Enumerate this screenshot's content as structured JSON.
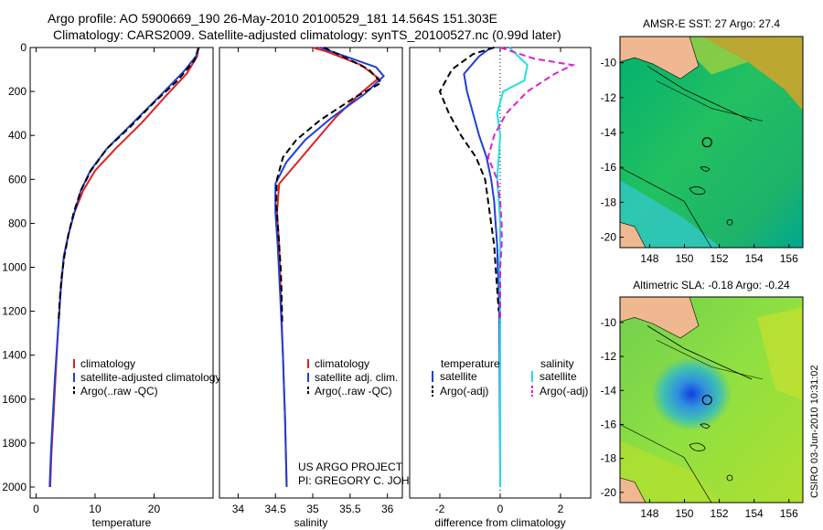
{
  "title_line1": "Argo profile: AO 5900669_190 26-May-2010 20100529_181 14.564S 151.303E",
  "title_line2": "Climatology: CARS2009. Satellite-adjusted climatology: synTS_20100527.nc (0.99d later)",
  "side_label": "CSIRO 03-Jun-2010 10:31:02",
  "colors": {
    "red": "#e02020",
    "blue": "#1f3fd6",
    "black": "#000000",
    "cyan": "#22e0e0",
    "magenta": "#e020d0"
  },
  "chart_data": [
    {
      "type": "line",
      "name": "temperature",
      "xlabel": "temperature",
      "xlim": [
        -1,
        30
      ],
      "ylim": [
        0,
        2050
      ],
      "y_reversed": true,
      "xticks": [
        0,
        10,
        20
      ],
      "xtick_labels": [
        "0",
        "10",
        "20"
      ],
      "yticks": [
        0,
        200,
        400,
        600,
        800,
        1000,
        1200,
        1400,
        1600,
        1800,
        2000
      ],
      "ytick_labels": [
        "0",
        "200",
        "400",
        "600",
        "800",
        "1000",
        "1200",
        "1400",
        "1600",
        "1800",
        "2000"
      ],
      "legend": [
        "climatology",
        "satellite-adjusted climatology",
        "Argo(..raw -QC)"
      ],
      "series": [
        {
          "name": "climatology",
          "color": "#e02020",
          "dash": "",
          "points": [
            [
              27.5,
              0
            ],
            [
              27.3,
              40
            ],
            [
              25.5,
              120
            ],
            [
              22,
              220
            ],
            [
              18,
              340
            ],
            [
              13.5,
              460
            ],
            [
              10,
              560
            ],
            [
              8,
              650
            ],
            [
              6.5,
              750
            ],
            [
              5.5,
              850
            ],
            [
              4.7,
              950
            ],
            [
              4.2,
              1100
            ],
            [
              3.7,
              1300
            ],
            [
              3.3,
              1500
            ],
            [
              2.9,
              1700
            ],
            [
              2.6,
              1850
            ],
            [
              2.4,
              2000
            ]
          ]
        },
        {
          "name": "satellite-adjusted climatology",
          "color": "#1f3fd6",
          "dash": "",
          "points": [
            [
              27.5,
              0
            ],
            [
              27.1,
              40
            ],
            [
              25,
              110
            ],
            [
              21,
              220
            ],
            [
              16.5,
              340
            ],
            [
              12,
              460
            ],
            [
              9.2,
              560
            ],
            [
              7.6,
              650
            ],
            [
              6.5,
              750
            ],
            [
              5.5,
              850
            ],
            [
              4.7,
              950
            ],
            [
              4.2,
              1100
            ],
            [
              3.7,
              1300
            ],
            [
              3.2,
              1500
            ],
            [
              2.8,
              1700
            ],
            [
              2.5,
              1850
            ],
            [
              2.3,
              2000
            ]
          ]
        },
        {
          "name": "Argo(..raw -QC)",
          "color": "#000000",
          "dash": "7,4",
          "points": [
            [
              27.6,
              0
            ],
            [
              26.8,
              60
            ],
            [
              24,
              150
            ],
            [
              20,
              250
            ],
            [
              16,
              360
            ],
            [
              12,
              460
            ],
            [
              9.3,
              560
            ],
            [
              7.6,
              650
            ],
            [
              6.4,
              750
            ],
            [
              5.5,
              850
            ],
            [
              4.8,
              950
            ],
            [
              4.3,
              1050
            ],
            [
              4.0,
              1150
            ],
            [
              3.8,
              1250
            ]
          ]
        }
      ]
    },
    {
      "type": "line",
      "name": "salinity",
      "xlabel": "salinity",
      "xlim": [
        33.75,
        36.2
      ],
      "ylim": [
        0,
        2050
      ],
      "y_reversed": true,
      "xticks": [
        34,
        34.5,
        35,
        35.5,
        36
      ],
      "xtick_labels": [
        "34",
        "34.5",
        "35",
        "35.5",
        "36"
      ],
      "legend": [
        "climatology",
        "satellite adj. clim.",
        "Argo(..raw -QC)"
      ],
      "annotation": [
        "US ARGO PROJECT",
        "PI: GREGORY C. JOHNSON"
      ],
      "series": [
        {
          "name": "climatology",
          "color": "#e02020",
          "dash": "",
          "points": [
            [
              35.0,
              0
            ],
            [
              35.2,
              20
            ],
            [
              35.65,
              80
            ],
            [
              35.88,
              140
            ],
            [
              35.6,
              220
            ],
            [
              35.3,
              320
            ],
            [
              35.05,
              420
            ],
            [
              34.8,
              520
            ],
            [
              34.55,
              620
            ],
            [
              34.52,
              750
            ],
            [
              34.55,
              900
            ],
            [
              34.57,
              1100
            ],
            [
              34.6,
              1400
            ],
            [
              34.63,
              1700
            ],
            [
              34.65,
              2000
            ]
          ]
        },
        {
          "name": "satellite adj. clim.",
          "color": "#1f3fd6",
          "dash": "",
          "points": [
            [
              35.1,
              0
            ],
            [
              35.35,
              30
            ],
            [
              35.85,
              90
            ],
            [
              35.95,
              130
            ],
            [
              35.7,
              210
            ],
            [
              35.25,
              320
            ],
            [
              34.9,
              420
            ],
            [
              34.65,
              520
            ],
            [
              34.5,
              620
            ],
            [
              34.5,
              750
            ],
            [
              34.53,
              900
            ],
            [
              34.56,
              1100
            ],
            [
              34.6,
              1400
            ],
            [
              34.63,
              1700
            ],
            [
              34.65,
              2000
            ]
          ]
        },
        {
          "name": "Argo(..raw -QC)",
          "color": "#000000",
          "dash": "7,4",
          "points": [
            [
              35.15,
              0
            ],
            [
              35.4,
              40
            ],
            [
              35.75,
              100
            ],
            [
              35.92,
              160
            ],
            [
              35.55,
              230
            ],
            [
              35.1,
              330
            ],
            [
              34.78,
              420
            ],
            [
              34.6,
              500
            ],
            [
              34.52,
              600
            ],
            [
              34.51,
              700
            ],
            [
              34.53,
              800
            ],
            [
              34.55,
              900
            ],
            [
              34.57,
              1000
            ],
            [
              34.58,
              1100
            ],
            [
              34.59,
              1250
            ]
          ]
        }
      ]
    },
    {
      "type": "line",
      "name": "difference",
      "xlabel": "difference from climatology",
      "xlim": [
        -3,
        3
      ],
      "ylim": [
        0,
        2050
      ],
      "y_reversed": true,
      "xticks": [
        -2,
        0,
        2
      ],
      "xtick_labels": [
        "-2",
        "0",
        "2"
      ],
      "legend_temperature": {
        "header": "temperature",
        "entries": [
          "satellite",
          "Argo(-adj)"
        ]
      },
      "legend_salinity": {
        "header": "salinity",
        "entries": [
          "satellite",
          "Argo(-adj)"
        ]
      },
      "series": [
        {
          "name": "temperature satellite",
          "color": "#1f3fd6",
          "dash": "",
          "points": [
            [
              -0.3,
              0
            ],
            [
              -0.7,
              40
            ],
            [
              -1.2,
              120
            ],
            [
              -1.1,
              200
            ],
            [
              -0.9,
              300
            ],
            [
              -0.7,
              400
            ],
            [
              -0.45,
              500
            ],
            [
              -0.3,
              600
            ],
            [
              -0.2,
              700
            ],
            [
              -0.15,
              800
            ],
            [
              -0.1,
              900
            ],
            [
              -0.08,
              1000
            ],
            [
              -0.05,
              1100
            ],
            [
              -0.03,
              1200
            ],
            [
              -0.02,
              1400
            ],
            [
              0,
              2000
            ]
          ]
        },
        {
          "name": "temperature Argo(-adj)",
          "color": "#000000",
          "dash": "7,4",
          "points": [
            [
              -0.2,
              0
            ],
            [
              -0.9,
              30
            ],
            [
              -1.6,
              100
            ],
            [
              -2.0,
              200
            ],
            [
              -1.7,
              300
            ],
            [
              -1.3,
              400
            ],
            [
              -0.8,
              500
            ],
            [
              -0.5,
              600
            ],
            [
              -0.4,
              700
            ],
            [
              -0.3,
              800
            ],
            [
              -0.2,
              900
            ],
            [
              -0.15,
              1000
            ],
            [
              -0.1,
              1100
            ],
            [
              -0.05,
              1200
            ]
          ]
        },
        {
          "name": "salinity satellite",
          "color": "#22e0e0",
          "dash": "",
          "points": [
            [
              0.3,
              0
            ],
            [
              0.9,
              80
            ],
            [
              0.8,
              150
            ],
            [
              0.1,
              200
            ],
            [
              -0.1,
              300
            ],
            [
              0,
              400
            ],
            [
              -0.05,
              500
            ],
            [
              -0.1,
              600
            ],
            [
              -0.05,
              700
            ],
            [
              0,
              800
            ],
            [
              0,
              900
            ],
            [
              -0.02,
              1000
            ],
            [
              0,
              1200
            ],
            [
              0,
              2000
            ]
          ]
        },
        {
          "name": "salinity Argo(-adj)",
          "color": "#e020d0",
          "dash": "7,4",
          "points": [
            [
              0,
              0
            ],
            [
              1.1,
              50
            ],
            [
              2.4,
              80
            ],
            [
              1.8,
              120
            ],
            [
              0.9,
              200
            ],
            [
              0.2,
              300
            ],
            [
              -0.2,
              400
            ],
            [
              -0.4,
              500
            ],
            [
              -0.1,
              600
            ],
            [
              0,
              700
            ],
            [
              0.05,
              800
            ],
            [
              0.05,
              900
            ],
            [
              0,
              1000
            ],
            [
              0,
              1250
            ]
          ]
        }
      ]
    },
    {
      "type": "heatmap",
      "name": "AMSR-E SST",
      "title": "AMSR-E SST: 27 Argo: 27.4",
      "xlim": [
        146.3,
        156.8
      ],
      "ylim": [
        -20.6,
        -8.5
      ],
      "xticks": [
        148,
        150,
        152,
        154,
        156
      ],
      "xtick_labels": [
        "148",
        "150",
        "152",
        "154",
        "156"
      ],
      "yticks": [
        -10,
        -12,
        -14,
        -16,
        -18,
        -20
      ],
      "ytick_labels": [
        "-10",
        "-12",
        "-14",
        "-16",
        "-18",
        "-20"
      ],
      "argo_marker": [
        151.3,
        -14.56
      ]
    },
    {
      "type": "heatmap",
      "name": "Altimetric SLA",
      "title": "Altimetric SLA: -0.18 Argo: -0.24",
      "xlim": [
        146.3,
        156.8
      ],
      "ylim": [
        -20.6,
        -8.5
      ],
      "xticks": [
        148,
        150,
        152,
        154,
        156
      ],
      "xtick_labels": [
        "148",
        "150",
        "152",
        "154",
        "156"
      ],
      "yticks": [
        -10,
        -12,
        -14,
        -16,
        -18,
        -20
      ],
      "ytick_labels": [
        "-10",
        "-12",
        "-14",
        "-16",
        "-18",
        "-20"
      ],
      "argo_marker": [
        151.3,
        -14.56
      ]
    }
  ]
}
